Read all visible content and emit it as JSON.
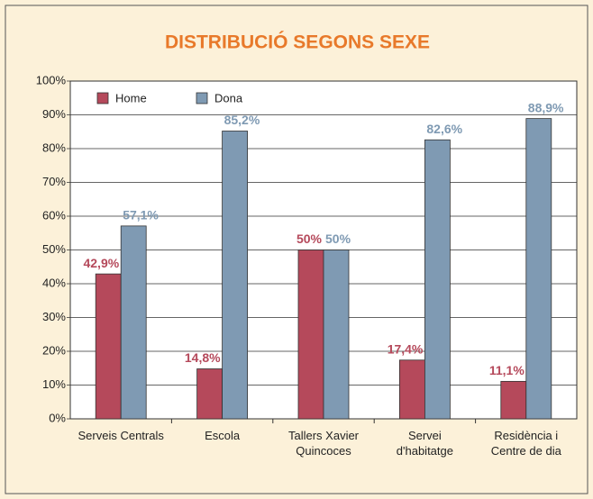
{
  "chart_data": {
    "type": "bar",
    "title": "DISTRIBUCIÓ SEGONS SEXE",
    "categories": [
      "Serveis Centrals",
      "Escola",
      "Tallers Xavier\nQuincoces",
      "Servei\nd'habitatge",
      "Residència i\nCentre de dia"
    ],
    "series": [
      {
        "name": "Home",
        "color": "#b5495b",
        "values": [
          42.9,
          14.8,
          50,
          17.4,
          11.1
        ],
        "value_labels": [
          "42,9%",
          "14,8%",
          "50%",
          "17,4%",
          "11,1%"
        ]
      },
      {
        "name": "Dona",
        "color": "#7f9ab3",
        "values": [
          57.1,
          85.2,
          50,
          82.6,
          88.9
        ],
        "value_labels": [
          "57,1%",
          "85,2%",
          "50%",
          "82,6%",
          "88,9%"
        ]
      }
    ],
    "ylim": [
      0,
      100
    ],
    "yticks": [
      {
        "value": 0,
        "label": "0%"
      },
      {
        "value": 10,
        "label": "10%"
      },
      {
        "value": 20,
        "label": "20%"
      },
      {
        "value": 30,
        "label": "30%"
      },
      {
        "value": 40,
        "label": "40%"
      },
      {
        "value": 50,
        "label": "50%"
      },
      {
        "value": 60,
        "label": "60%"
      },
      {
        "value": 70,
        "label": "70%"
      },
      {
        "value": 80,
        "label": "80%"
      },
      {
        "value": 90,
        "label": "90%"
      },
      {
        "value": 100,
        "label": "100%"
      }
    ],
    "grid": true,
    "legend": "top-left"
  }
}
